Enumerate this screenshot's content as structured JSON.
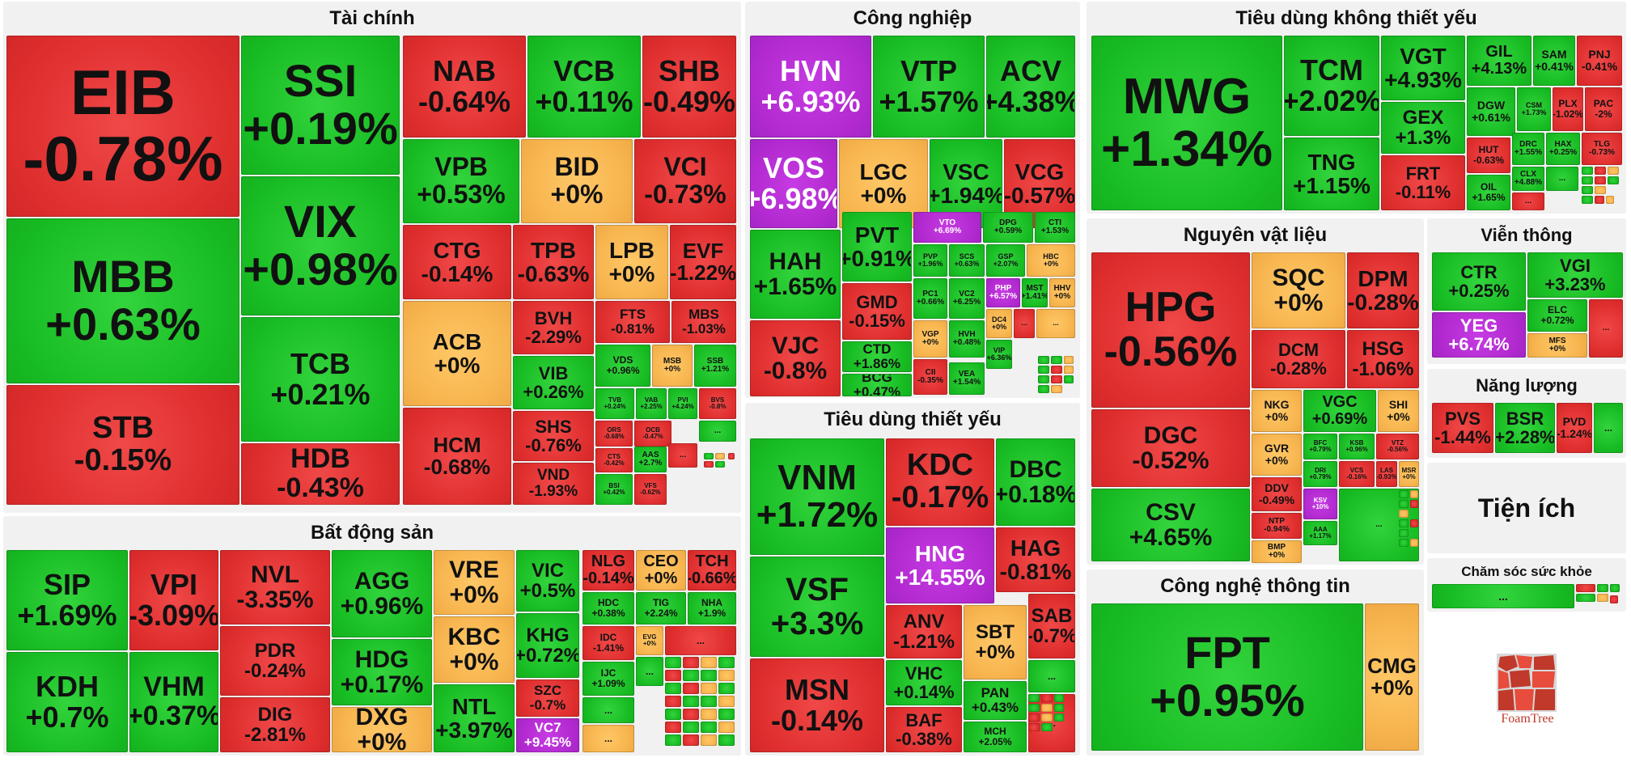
{
  "colors": {
    "up": "#19bd24",
    "down": "#e02f2f",
    "flat": "#f7b54f",
    "ceiling": "#b22ad0"
  },
  "sectors": [
    {
      "title": "Tài chính",
      "tiles": [
        [
          "EIB",
          "-0.78%"
        ],
        [
          "MBB",
          "+0.63%"
        ],
        [
          "STB",
          "-0.15%"
        ],
        [
          "SSI",
          "+0.19%"
        ],
        [
          "VIX",
          "+0.98%"
        ],
        [
          "TCB",
          "+0.21%"
        ],
        [
          "HDB",
          "-0.43%"
        ],
        [
          "NAB",
          "-0.64%"
        ],
        [
          "VCB",
          "+0.11%"
        ],
        [
          "SHB",
          "-0.49%"
        ],
        [
          "VPB",
          "+0.53%"
        ],
        [
          "BID",
          "+0%"
        ],
        [
          "VCI",
          "-0.73%"
        ],
        [
          "CTG",
          "-0.14%"
        ],
        [
          "TPB",
          "-0.63%"
        ],
        [
          "LPB",
          "+0%"
        ],
        [
          "EVF",
          "-1.22%"
        ],
        [
          "ACB",
          "+0%"
        ],
        [
          "BVH",
          "-2.29%"
        ],
        [
          "FTS",
          "-0.81%"
        ],
        [
          "MBS",
          "-1.03%"
        ],
        [
          "VIB",
          "+0.26%"
        ],
        [
          "VDS",
          "+0.96%"
        ],
        [
          "MSB",
          "+0%"
        ],
        [
          "SSB",
          "+1.21%"
        ],
        [
          "HCM",
          "-0.68%"
        ],
        [
          "SHS",
          "-0.76%"
        ],
        [
          "TVB",
          "+0.24%"
        ],
        [
          "VAB",
          "+2.25%"
        ],
        [
          "PVI",
          "+4.24%"
        ],
        [
          "BVS",
          "-0.8%"
        ],
        [
          "VND",
          "-1.93%"
        ],
        [
          "ORS",
          "-0.68%"
        ],
        [
          "OCB",
          "-0.47%"
        ],
        [
          "CTS",
          "-0.42%"
        ],
        [
          "BSI",
          "+0.42%"
        ],
        [
          "VFS",
          "-0.62%"
        ],
        [
          "AAS",
          "+2.7%"
        ],
        [
          "...",
          ""
        ],
        [
          "...",
          ""
        ],
        [
          "...",
          ""
        ]
      ]
    },
    {
      "title": "Công nghiệp",
      "tiles": [
        [
          "HVN",
          "+6.93%"
        ],
        [
          "VTP",
          "+1.57%"
        ],
        [
          "ACV",
          "+4.38%"
        ],
        [
          "VOS",
          "+6.98%"
        ],
        [
          "LGC",
          "+0%"
        ],
        [
          "VSC",
          "+1.94%"
        ],
        [
          "VCG",
          "-0.57%"
        ],
        [
          "HAH",
          "+1.65%"
        ],
        [
          "PVT",
          "+0.91%"
        ],
        [
          "VTO",
          "+6.69%"
        ],
        [
          "DPG",
          "+0.59%"
        ],
        [
          "CTI",
          "+1.53%"
        ],
        [
          "PVP",
          "+1.96%"
        ],
        [
          "SCS",
          "+0.63%"
        ],
        [
          "GSP",
          "+2.07%"
        ],
        [
          "HBC",
          "+0%"
        ],
        [
          "VJC",
          "-0.8%"
        ],
        [
          "GMD",
          "-0.15%"
        ],
        [
          "PC1",
          "+0.66%"
        ],
        [
          "VC2",
          "+6.25%"
        ],
        [
          "PHP",
          "+6.57%"
        ],
        [
          "MST",
          "+1.41%"
        ],
        [
          "HHV",
          "+0%"
        ],
        [
          "CTD",
          "+1.86%"
        ],
        [
          "VGP",
          "+0%"
        ],
        [
          "HVH",
          "+0.48%"
        ],
        [
          "DC4",
          "+0%"
        ],
        [
          "BCG",
          "+0.47%"
        ],
        [
          "CII",
          "-0.35%"
        ],
        [
          "VEA",
          "+1.54%"
        ],
        [
          "VIP",
          "+6.36%"
        ],
        [
          "...",
          ""
        ],
        [
          "...",
          ""
        ]
      ]
    },
    {
      "title": "Tiêu dùng không thiết yếu",
      "tiles": [
        [
          "MWG",
          "+1.34%"
        ],
        [
          "TCM",
          "+2.02%"
        ],
        [
          "VGT",
          "+4.93%"
        ],
        [
          "GIL",
          "+4.13%"
        ],
        [
          "SAM",
          "+0.41%"
        ],
        [
          "PNJ",
          "-0.41%"
        ],
        [
          "GEX",
          "+1.3%"
        ],
        [
          "DGW",
          "+0.61%"
        ],
        [
          "CSM",
          "+1.73%"
        ],
        [
          "PLX",
          "-1.02%"
        ],
        [
          "PAC",
          "-2%"
        ],
        [
          "TNG",
          "+1.15%"
        ],
        [
          "FRT",
          "-0.11%"
        ],
        [
          "HUT",
          "-0.63%"
        ],
        [
          "DRC",
          "+1.55%"
        ],
        [
          "HAX",
          "+0.25%"
        ],
        [
          "TLG",
          "-0.73%"
        ],
        [
          "OIL",
          "+1.65%"
        ],
        [
          "CLX",
          "+4.88%"
        ],
        [
          "...",
          ""
        ],
        [
          "...",
          ""
        ],
        [
          "...",
          ""
        ]
      ]
    },
    {
      "title": "Bất động sản",
      "tiles": [
        [
          "SIP",
          "+1.69%"
        ],
        [
          "VPI",
          "-3.09%"
        ],
        [
          "NVL",
          "-3.35%"
        ],
        [
          "AGG",
          "+0.96%"
        ],
        [
          "VRE",
          "+0%"
        ],
        [
          "VIC",
          "+0.5%"
        ],
        [
          "NLG",
          "-0.14%"
        ],
        [
          "CEO",
          "+0%"
        ],
        [
          "TCH",
          "-0.66%"
        ],
        [
          "KDH",
          "+0.7%"
        ],
        [
          "VHM",
          "+0.37%"
        ],
        [
          "PDR",
          "-0.24%"
        ],
        [
          "HDG",
          "+0.17%"
        ],
        [
          "KBC",
          "+0%"
        ],
        [
          "KHG",
          "+0.72%"
        ],
        [
          "HDC",
          "+0.38%"
        ],
        [
          "TIG",
          "+2.24%"
        ],
        [
          "NHA",
          "+1.9%"
        ],
        [
          "DIG",
          "-2.81%"
        ],
        [
          "DXG",
          "+0%"
        ],
        [
          "NTL",
          "+3.97%"
        ],
        [
          "SZC",
          "-0.7%"
        ],
        [
          "IDC",
          "-1.41%"
        ],
        [
          "EVG",
          "+0%"
        ],
        [
          "IJC",
          "+1.09%"
        ],
        [
          "VC7",
          "+9.45%"
        ],
        [
          "...",
          ""
        ],
        [
          "...",
          ""
        ],
        [
          "...",
          ""
        ],
        [
          "...",
          ""
        ]
      ]
    },
    {
      "title": "Tiêu dùng thiết yếu",
      "tiles": [
        [
          "VNM",
          "+1.72%"
        ],
        [
          "KDC",
          "-0.17%"
        ],
        [
          "DBC",
          "+0.18%"
        ],
        [
          "HNG",
          "+14.55%"
        ],
        [
          "HAG",
          "-0.81%"
        ],
        [
          "VSF",
          "+3.3%"
        ],
        [
          "ANV",
          "-1.21%"
        ],
        [
          "SBT",
          "+0%"
        ],
        [
          "SAB",
          "-0.7%"
        ],
        [
          "MSN",
          "-0.14%"
        ],
        [
          "VHC",
          "+0.14%"
        ],
        [
          "PAN",
          "+0.43%"
        ],
        [
          "BAF",
          "-0.38%"
        ],
        [
          "MCH",
          "+2.05%"
        ],
        [
          "...",
          ""
        ],
        [
          "...",
          ""
        ]
      ]
    },
    {
      "title": "Nguyên vật liệu",
      "tiles": [
        [
          "HPG",
          "-0.56%"
        ],
        [
          "SQC",
          "+0%"
        ],
        [
          "DPM",
          "-0.28%"
        ],
        [
          "DCM",
          "-0.28%"
        ],
        [
          "HSG",
          "-1.06%"
        ],
        [
          "DGC",
          "-0.52%"
        ],
        [
          "NKG",
          "+0%"
        ],
        [
          "VGC",
          "+0.69%"
        ],
        [
          "SHI",
          "+0%"
        ],
        [
          "GVR",
          "+0%"
        ],
        [
          "BFC",
          "+0.79%"
        ],
        [
          "KSB",
          "+0.96%"
        ],
        [
          "VTZ",
          "-0.56%"
        ],
        [
          "DRI",
          "+0.79%"
        ],
        [
          "VCS",
          "-0.16%"
        ],
        [
          "LAS",
          "-0.93%"
        ],
        [
          "MSR",
          "+0%"
        ],
        [
          "CSV",
          "+4.65%"
        ],
        [
          "DDV",
          "-0.49%"
        ],
        [
          "KSV",
          "+10%"
        ],
        [
          "NTP",
          "-0.94%"
        ],
        [
          "AAA",
          "+1.17%"
        ],
        [
          "BMP",
          "+0%"
        ],
        [
          "...",
          ""
        ]
      ]
    },
    {
      "title": "Viễn thông",
      "tiles": [
        [
          "CTR",
          "+0.25%"
        ],
        [
          "VGI",
          "+3.23%"
        ],
        [
          "YEG",
          "+6.74%"
        ],
        [
          "ELC",
          "+0.72%"
        ],
        [
          "MFS",
          "+0%"
        ],
        [
          "...",
          ""
        ]
      ]
    },
    {
      "title": "Năng lượng",
      "tiles": [
        [
          "PVS",
          "-1.44%"
        ],
        [
          "BSR",
          "+2.28%"
        ],
        [
          "PVD",
          "-1.24%"
        ],
        [
          "...",
          ""
        ]
      ]
    },
    {
      "title": "Tiện ích",
      "tiles": []
    },
    {
      "title": "Công nghệ thông tin",
      "tiles": [
        [
          "FPT",
          "+0.95%"
        ],
        [
          "CMG",
          "+0%"
        ]
      ]
    },
    {
      "title": "Chăm sóc sức khỏe",
      "tiles": [
        [
          "...",
          ""
        ]
      ]
    }
  ],
  "brand": {
    "name": "FoamTree"
  }
}
